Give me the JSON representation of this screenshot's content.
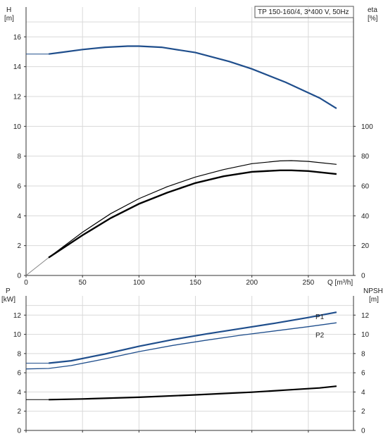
{
  "chart_data": [
    {
      "type": "line",
      "title": "TP 150-160/4, 3*400 V, 50Hz",
      "xlabel": "Q [m³/h]",
      "ylabel_left": "H\n[m]",
      "ylabel_left_top": "H",
      "ylabel_left_unit": "[m]",
      "ylabel_right_top": "eta",
      "ylabel_right_unit": "[%]",
      "xlim": [
        0,
        290
      ],
      "ylim_left": [
        0,
        18
      ],
      "ylim_right": [
        0,
        180
      ],
      "x_ticks": [
        0,
        50,
        100,
        150,
        200,
        250
      ],
      "y_left_ticks": [
        0,
        2,
        4,
        6,
        8,
        10,
        12,
        14,
        16
      ],
      "y_right_ticks": [
        0,
        20,
        40,
        60,
        80,
        100
      ],
      "grid": true,
      "series": [
        {
          "role": "head",
          "color": "#1f4e8c",
          "axis": "left",
          "x": [
            0,
            20,
            30,
            50,
            70,
            90,
            100,
            120,
            150,
            180,
            200,
            230,
            260,
            275
          ],
          "y": [
            14.85,
            14.85,
            14.95,
            15.15,
            15.3,
            15.38,
            15.38,
            15.3,
            14.95,
            14.35,
            13.85,
            12.95,
            11.9,
            11.2
          ]
        },
        {
          "role": "efficiency",
          "color": "#000000",
          "axis": "right",
          "x": [
            0,
            20,
            50,
            75,
            100,
            125,
            150,
            175,
            200,
            225,
            235,
            250,
            275
          ],
          "y": [
            0,
            12,
            29,
            41.5,
            51.5,
            59.5,
            66,
            71,
            75,
            76.8,
            77,
            76.5,
            74.5
          ]
        },
        {
          "role": "efficiency-motor",
          "color": "#000000",
          "axis": "right",
          "x": [
            20,
            50,
            75,
            100,
            125,
            150,
            175,
            200,
            225,
            235,
            250,
            275
          ],
          "y": [
            12,
            27,
            38.5,
            48,
            55.5,
            62,
            66.5,
            69.5,
            70.5,
            70.5,
            70,
            68
          ]
        }
      ]
    },
    {
      "type": "line",
      "xlabel": "",
      "ylabel_left_top": "P",
      "ylabel_left_unit": "[kW]",
      "ylabel_right_top": "NPSH",
      "ylabel_right_unit": "[m]",
      "xlim": [
        0,
        290
      ],
      "ylim_left": [
        0,
        14
      ],
      "ylim_right": [
        0,
        14
      ],
      "y_left_ticks": [
        0,
        2,
        4,
        6,
        8,
        10,
        12
      ],
      "y_right_ticks": [
        0,
        2,
        4,
        6,
        8,
        10,
        12
      ],
      "grid": true,
      "series": [
        {
          "name": "P1",
          "color": "#1f4e8c",
          "axis": "left",
          "x": [
            0,
            20,
            40,
            70,
            100,
            130,
            160,
            190,
            220,
            250,
            275
          ],
          "y": [
            7.0,
            7.0,
            7.25,
            7.95,
            8.75,
            9.45,
            10.05,
            10.6,
            11.15,
            11.75,
            12.3
          ]
        },
        {
          "name": "P2",
          "color": "#1f4e8c",
          "axis": "left",
          "x": [
            0,
            20,
            40,
            70,
            100,
            130,
            160,
            190,
            220,
            250,
            275
          ],
          "y": [
            6.4,
            6.45,
            6.75,
            7.45,
            8.2,
            8.85,
            9.4,
            9.9,
            10.35,
            10.8,
            11.2
          ]
        },
        {
          "role": "npsh",
          "color": "#000000",
          "axis": "right",
          "x": [
            0,
            20,
            50,
            100,
            150,
            200,
            230,
            260,
            275
          ],
          "y": [
            3.2,
            3.2,
            3.28,
            3.45,
            3.7,
            3.98,
            4.2,
            4.42,
            4.6
          ]
        }
      ]
    }
  ]
}
